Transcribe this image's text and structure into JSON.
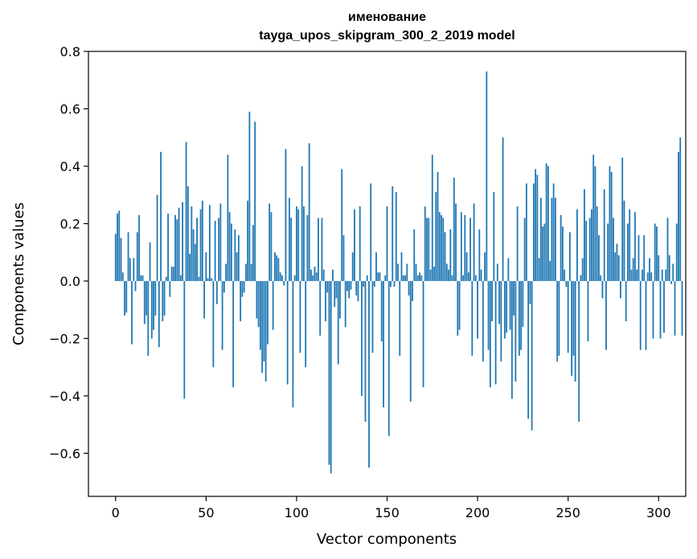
{
  "chart_data": {
    "type": "bar",
    "title": "именование",
    "subtitle": "tayga_upos_skipgram_300_2_2019 model",
    "xlabel": "Vector components",
    "ylabel": "Components values",
    "xlim": [
      -15,
      315
    ],
    "ylim": [
      -0.75,
      0.8
    ],
    "xticks": [
      0,
      50,
      100,
      150,
      200,
      250,
      300
    ],
    "xtick_labels": [
      "0",
      "50",
      "100",
      "150",
      "200",
      "250",
      "300"
    ],
    "yticks": [
      -0.6,
      -0.4,
      -0.2,
      0.0,
      0.2,
      0.4,
      0.6,
      0.8
    ],
    "ytick_labels": [
      "−0.6",
      "−0.4",
      "−0.2",
      "0.0",
      "0.2",
      "0.4",
      "0.6",
      "0.8"
    ],
    "bar_color": "#1f77b4",
    "grid": false,
    "values": [
      0.165,
      0.235,
      0.245,
      0.15,
      0.03,
      -0.12,
      -0.11,
      0.17,
      0.08,
      -0.22,
      0.08,
      -0.035,
      0.17,
      0.23,
      0.02,
      0.02,
      -0.15,
      -0.12,
      -0.26,
      0.135,
      -0.2,
      -0.17,
      -0.12,
      0.3,
      -0.23,
      0.45,
      -0.14,
      -0.12,
      0.015,
      0.235,
      -0.055,
      0.05,
      0.05,
      0.23,
      0.215,
      0.255,
      0.02,
      0.275,
      -0.41,
      0.485,
      0.33,
      0.095,
      0.26,
      0.18,
      0.13,
      0.22,
      0.015,
      0.25,
      0.28,
      -0.13,
      0.1,
      0.01,
      0.265,
      0.01,
      -0.3,
      0.21,
      -0.08,
      0.22,
      0.27,
      -0.24,
      -0.04,
      0.06,
      0.44,
      0.24,
      0.2,
      -0.37,
      0.18,
      0.1,
      0.16,
      -0.14,
      -0.055,
      -0.04,
      0.06,
      0.28,
      0.59,
      0.06,
      0.195,
      0.555,
      -0.13,
      -0.16,
      -0.24,
      -0.32,
      -0.28,
      -0.35,
      -0.22,
      0.27,
      0.24,
      -0.17,
      0.1,
      0.09,
      0.08,
      0.03,
      0.02,
      -0.015,
      0.46,
      -0.36,
      0.29,
      0.22,
      -0.44,
      0.02,
      0.26,
      0.25,
      -0.25,
      0.4,
      0.26,
      -0.3,
      0.23,
      0.48,
      0.04,
      0.02,
      0.05,
      0.03,
      0.22,
      -0.19,
      0.22,
      0.04,
      -0.14,
      -0.04,
      -0.64,
      -0.67,
      0.04,
      -0.09,
      -0.06,
      -0.29,
      -0.13,
      0.39,
      0.16,
      -0.16,
      -0.035,
      -0.06,
      -0.03,
      0.1,
      0.25,
      -0.05,
      -0.07,
      0.26,
      -0.4,
      -0.02,
      -0.49,
      0.02,
      -0.65,
      0.34,
      -0.25,
      -0.02,
      0.1,
      0.03,
      0.03,
      -0.21,
      -0.44,
      0.02,
      0.26,
      -0.54,
      -0.02,
      0.33,
      -0.02,
      0.31,
      0.06,
      -0.26,
      0.1,
      0.02,
      0.02,
      0.06,
      -0.05,
      -0.42,
      -0.07,
      0.18,
      0.06,
      0.02,
      0.03,
      0.02,
      -0.37,
      0.26,
      0.22,
      0.22,
      0.04,
      0.44,
      0.05,
      0.31,
      0.38,
      0.24,
      0.23,
      0.22,
      0.17,
      0.06,
      0.04,
      0.18,
      0.02,
      0.36,
      0.27,
      -0.19,
      -0.17,
      0.24,
      0.02,
      0.23,
      0.1,
      0.03,
      0.22,
      -0.26,
      0.27,
      0.02,
      -0.2,
      0.18,
      0.04,
      -0.28,
      0.1,
      0.73,
      -0.24,
      -0.37,
      -0.14,
      0.31,
      -0.36,
      0.06,
      -0.15,
      -0.28,
      0.5,
      -0.2,
      -0.18,
      0.08,
      -0.17,
      -0.41,
      -0.12,
      -0.35,
      0.26,
      -0.26,
      -0.24,
      -0.16,
      0.22,
      0.34,
      -0.48,
      -0.08,
      -0.52,
      0.34,
      0.39,
      0.37,
      0.08,
      0.29,
      0.19,
      0.2,
      0.41,
      0.4,
      0.07,
      0.29,
      0.34,
      0.29,
      -0.28,
      -0.26,
      0.23,
      0.19,
      0.04,
      -0.02,
      -0.25,
      0.17,
      -0.33,
      -0.26,
      -0.35,
      0.25,
      -0.49,
      0.02,
      0.08,
      0.32,
      0.21,
      -0.21,
      0.22,
      0.25,
      0.44,
      0.4,
      0.26,
      0.16,
      0.02,
      -0.06,
      0.32,
      -0.24,
      0.2,
      0.4,
      0.38,
      0.22,
      0.1,
      0.13,
      0.09,
      -0.06,
      0.43,
      0.28,
      -0.14,
      0.2,
      0.25,
      0.04,
      0.08,
      0.24,
      0.04,
      0.16,
      -0.24,
      0.04,
      0.16,
      -0.24,
      0.03,
      0.08,
      0.03,
      -0.2,
      0.2,
      0.19,
      0.09,
      -0.2,
      0.04,
      -0.18,
      0.04,
      0.22,
      0.09,
      -0.01,
      0.06,
      -0.19,
      0.2,
      0.45,
      0.5,
      -0.19
    ]
  }
}
